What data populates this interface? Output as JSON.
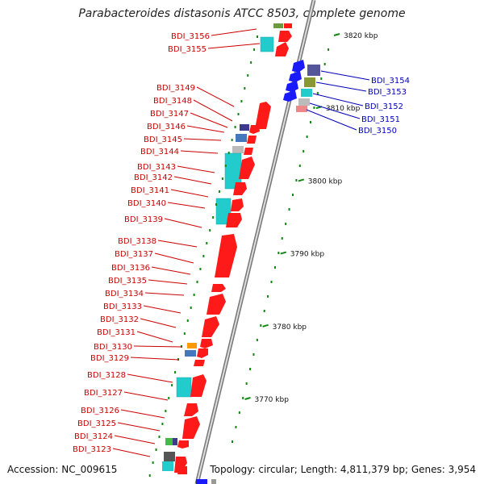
{
  "title": "Parabacteroides distasonis ATCC 8503, complete genome",
  "footer": {
    "accession": "Accession: NC_009615",
    "summary": "Topology: circular; Length: 4,811,379 bp; Genes: 3,954"
  },
  "scale_ticks": [
    {
      "label": "3820 kbp",
      "kbp": 3820
    },
    {
      "label": "3810 kbp",
      "kbp": 3810
    },
    {
      "label": "3800 kbp",
      "kbp": 3800
    },
    {
      "label": "3790 kbp",
      "kbp": 3790
    },
    {
      "label": "3780 kbp",
      "kbp": 3780
    },
    {
      "label": "3770 kbp",
      "kbp": 3770
    }
  ],
  "colors": {
    "forward_cds": "#ff1a1a",
    "reverse_cds": "#1a1aff",
    "rna": "#22cccc",
    "backbone": "#999999",
    "tick": "#118811",
    "forward_label": "#cc0000",
    "reverse_label": "#0000bb"
  },
  "reverse_genes": [
    "BDI_3154",
    "BDI_3153",
    "BDI_3152",
    "BDI_3151",
    "BDI_3150"
  ],
  "forward_genes": [
    "BDI_3156",
    "BDI_3155",
    "BDI_3149",
    "BDI_3148",
    "BDI_3147",
    "BDI_3146",
    "BDI_3145",
    "BDI_3144",
    "BDI_3143",
    "BDI_3142",
    "BDI_3141",
    "BDI_3140",
    "BDI_3139",
    "BDI_3138",
    "BDI_3137",
    "BDI_3136",
    "BDI_3135",
    "BDI_3134",
    "BDI_3133",
    "BDI_3132",
    "BDI_3131",
    "BDI_3130",
    "BDI_3129",
    "BDI_3128",
    "BDI_3127",
    "BDI_3126",
    "BDI_3125",
    "BDI_3124",
    "BDI_3123"
  ]
}
